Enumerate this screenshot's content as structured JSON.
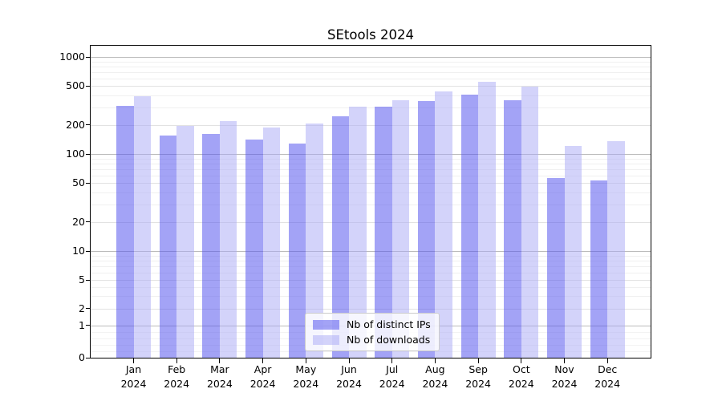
{
  "title": "SEtools 2024",
  "legend": {
    "items": [
      {
        "label": "Nb of distinct IPs",
        "series_key": "distinct_ips"
      },
      {
        "label": "Nb of downloads",
        "series_key": "downloads"
      }
    ]
  },
  "colors": {
    "distinct_ips": "rgba(82,82,238,0.53)",
    "downloads": "rgba(168,168,245,0.5)",
    "distinct_ips_solid": "#a5a5f1",
    "downloads_solid": "#d8d8f8",
    "grid_major": "#bbbbbb",
    "grid_mid": "#e2e2e2",
    "grid_minor": "#f0f0f0",
    "axis": "#000000"
  },
  "x_axis": {
    "months": [
      {
        "month": "Jan",
        "year": "2024"
      },
      {
        "month": "Feb",
        "year": "2024"
      },
      {
        "month": "Mar",
        "year": "2024"
      },
      {
        "month": "Apr",
        "year": "2024"
      },
      {
        "month": "May",
        "year": "2024"
      },
      {
        "month": "Jun",
        "year": "2024"
      },
      {
        "month": "Jul",
        "year": "2024"
      },
      {
        "month": "Aug",
        "year": "2024"
      },
      {
        "month": "Sep",
        "year": "2024"
      },
      {
        "month": "Oct",
        "year": "2024"
      },
      {
        "month": "Nov",
        "year": "2024"
      },
      {
        "month": "Dec",
        "year": "2024"
      }
    ]
  },
  "chart_data": {
    "type": "bar",
    "title": "SEtools 2024",
    "categories": [
      "Jan 2024",
      "Feb 2024",
      "Mar 2024",
      "Apr 2024",
      "May 2024",
      "Jun 2024",
      "Jul 2024",
      "Aug 2024",
      "Sep 2024",
      "Oct 2024",
      "Nov 2024",
      "Dec 2024"
    ],
    "series": [
      {
        "name": "Nb of distinct IPs",
        "key": "distinct_ips",
        "values": [
          315,
          155,
          160,
          140,
          127,
          245,
          305,
          350,
          405,
          355,
          57,
          53
        ]
      },
      {
        "name": "Nb of downloads",
        "key": "downloads",
        "values": [
          390,
          195,
          220,
          187,
          205,
          310,
          360,
          440,
          550,
          490,
          122,
          135
        ]
      }
    ],
    "yscale": "log above 2, compressed linear below (symlog-like)",
    "y_ticks": [
      0,
      1,
      2,
      5,
      10,
      20,
      50,
      100,
      200,
      500,
      1000
    ],
    "ylim": [
      0,
      1200
    ],
    "xlabel": "",
    "ylabel": "",
    "grid": true,
    "legend_position": "lower center"
  }
}
